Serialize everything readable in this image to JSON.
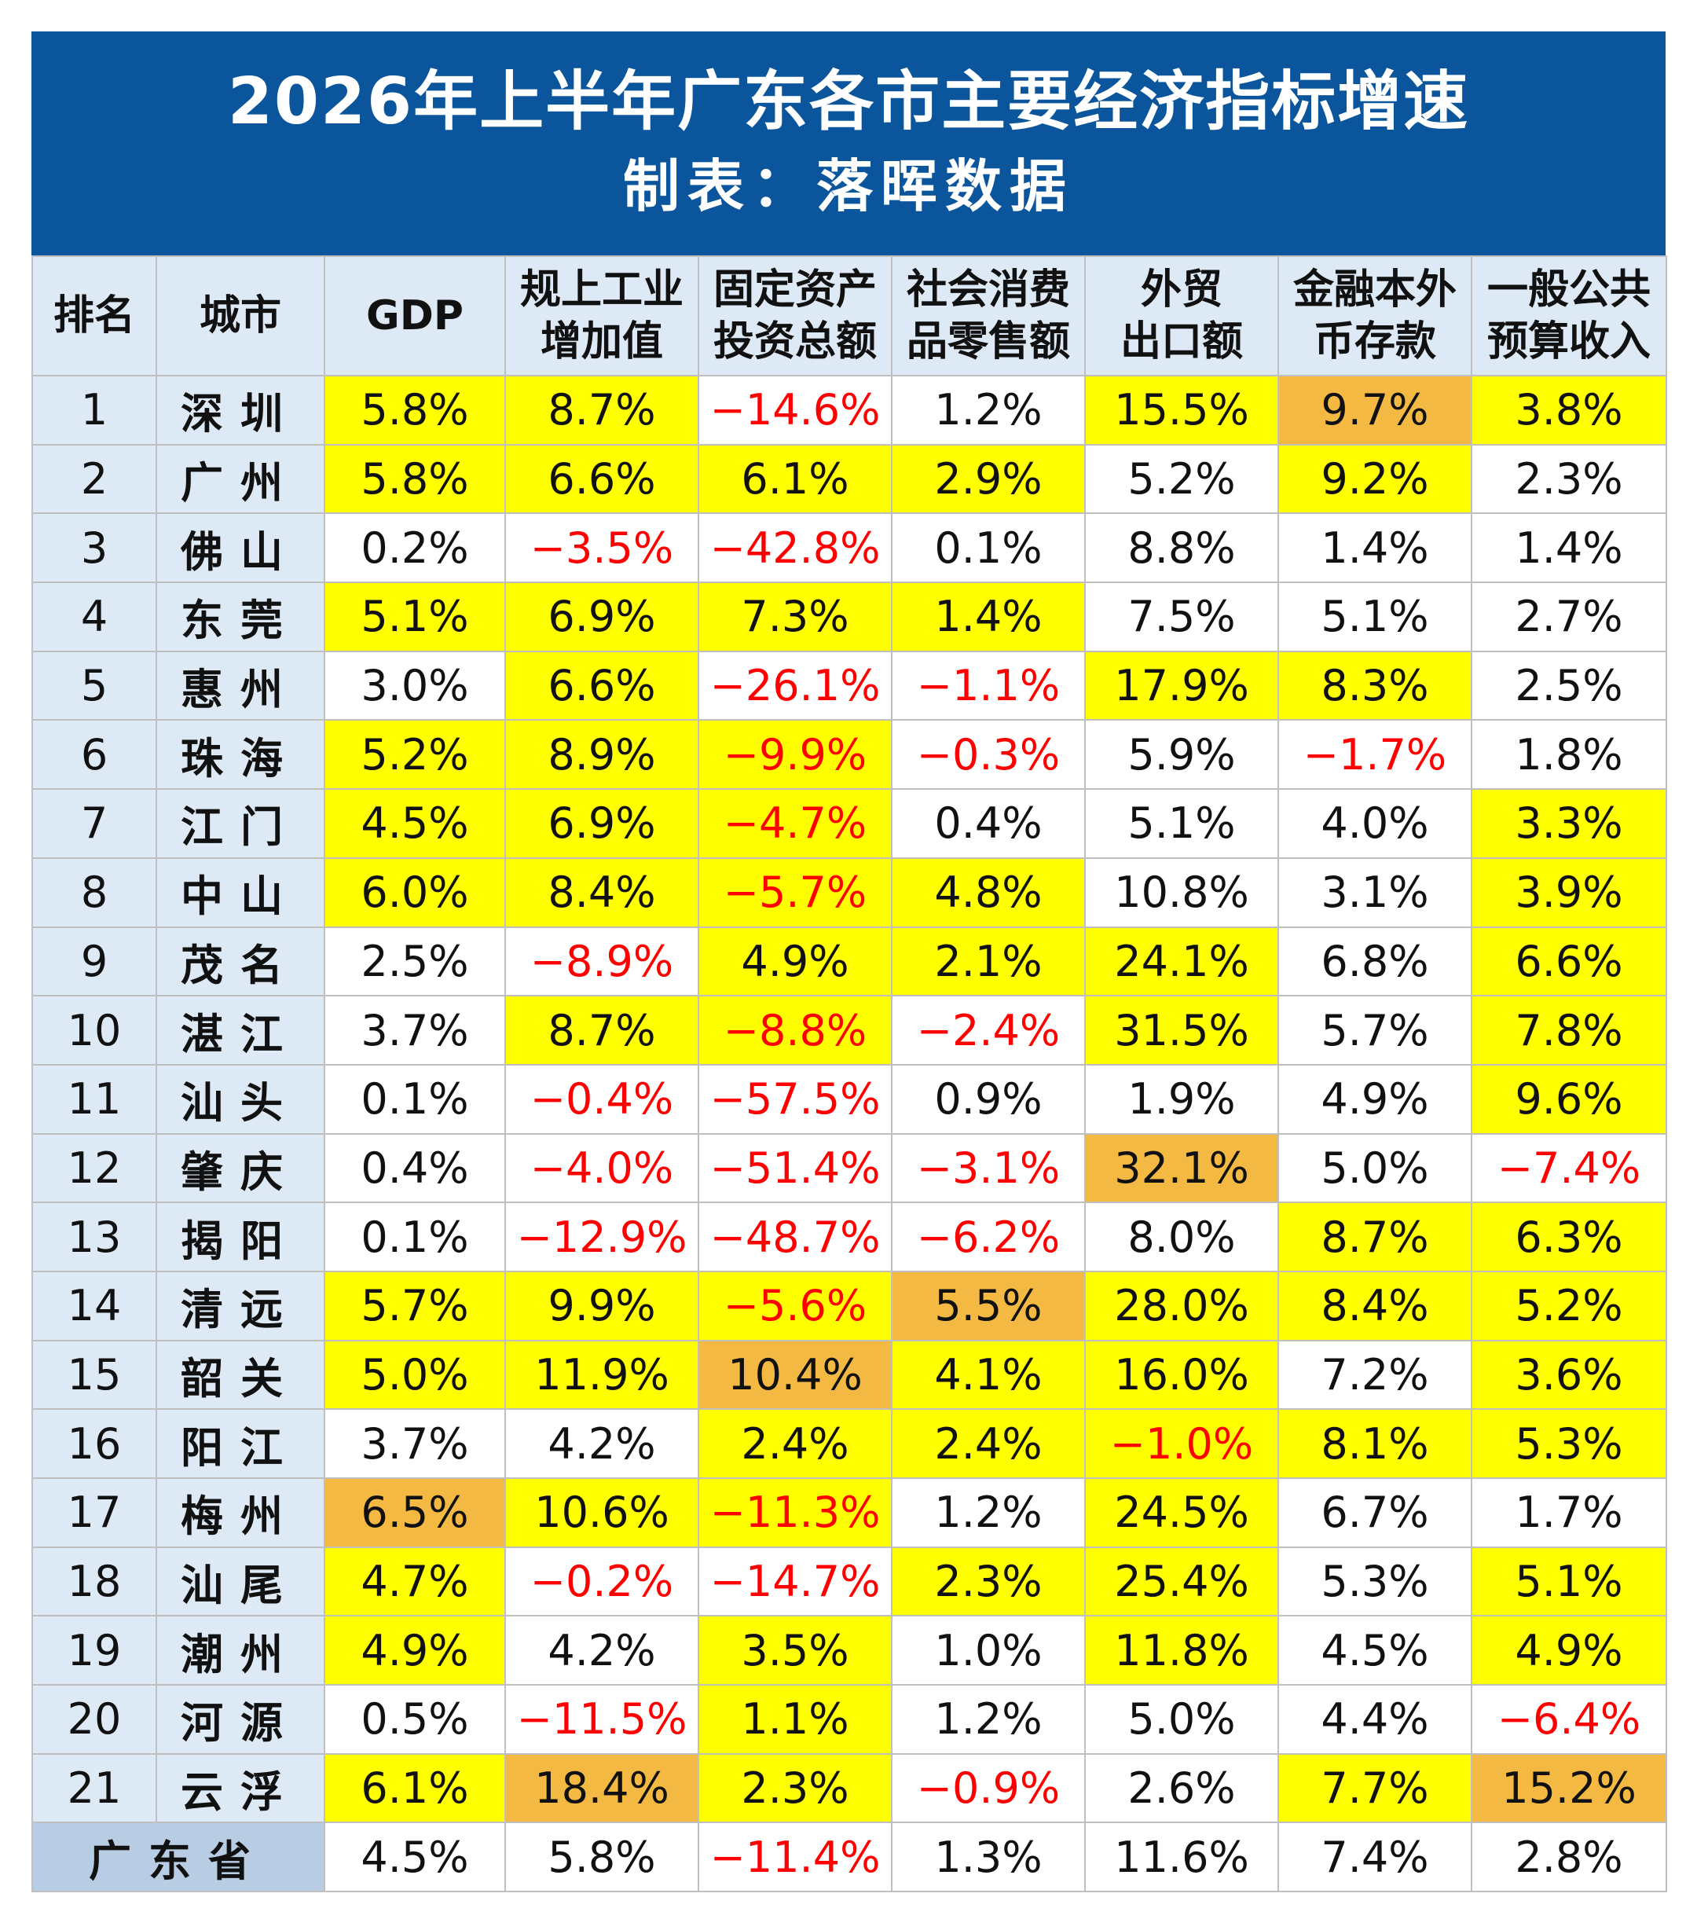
{
  "title": "2026年上半年广东各市主要经济指标增速",
  "subtitle": "制表：落晖数据",
  "colors": {
    "header_bg": "#0b559c",
    "highlight_yellow": "#ffff00",
    "highlight_orange": "#f4b942",
    "negative_text": "#ff0000",
    "label_bg": "#dde9f5",
    "province_bg": "#b8cce4"
  },
  "columns": [
    {
      "line1": "排名",
      "line2": ""
    },
    {
      "line1": "城市",
      "line2": ""
    },
    {
      "line1": "GDP",
      "line2": ""
    },
    {
      "line1": "规上工业",
      "line2": "增加值"
    },
    {
      "line1": "固定资产",
      "line2": "投资总额"
    },
    {
      "line1": "社会消费",
      "line2": "品零售额"
    },
    {
      "line1": "外贸",
      "line2": "出口额"
    },
    {
      "line1": "金融本外",
      "line2": "币存款"
    },
    {
      "line1": "一般公共",
      "line2": "预算收入"
    }
  ],
  "rows": [
    {
      "rank": "1",
      "city": "深圳",
      "values": [
        "5.8%",
        "8.7%",
        "−14.6%",
        "1.2%",
        "15.5%",
        "9.7%",
        "3.8%"
      ],
      "hl": [
        "y",
        "y",
        "",
        "",
        "y",
        "o",
        "y"
      ]
    },
    {
      "rank": "2",
      "city": "广州",
      "values": [
        "5.8%",
        "6.6%",
        "6.1%",
        "2.9%",
        "5.2%",
        "9.2%",
        "2.3%"
      ],
      "hl": [
        "y",
        "y",
        "y",
        "y",
        "",
        "y",
        ""
      ]
    },
    {
      "rank": "3",
      "city": "佛山",
      "values": [
        "0.2%",
        "−3.5%",
        "−42.8%",
        "0.1%",
        "8.8%",
        "1.4%",
        "1.4%"
      ],
      "hl": [
        "",
        "",
        "",
        "",
        "",
        "",
        ""
      ]
    },
    {
      "rank": "4",
      "city": "东莞",
      "values": [
        "5.1%",
        "6.9%",
        "7.3%",
        "1.4%",
        "7.5%",
        "5.1%",
        "2.7%"
      ],
      "hl": [
        "y",
        "y",
        "y",
        "y",
        "",
        "",
        ""
      ]
    },
    {
      "rank": "5",
      "city": "惠州",
      "values": [
        "3.0%",
        "6.6%",
        "−26.1%",
        "−1.1%",
        "17.9%",
        "8.3%",
        "2.5%"
      ],
      "hl": [
        "",
        "y",
        "",
        "",
        "y",
        "y",
        ""
      ]
    },
    {
      "rank": "6",
      "city": "珠海",
      "values": [
        "5.2%",
        "8.9%",
        "−9.9%",
        "−0.3%",
        "5.9%",
        "−1.7%",
        "1.8%"
      ],
      "hl": [
        "y",
        "y",
        "y",
        "",
        "",
        "",
        ""
      ]
    },
    {
      "rank": "7",
      "city": "江门",
      "values": [
        "4.5%",
        "6.9%",
        "−4.7%",
        "0.4%",
        "5.1%",
        "4.0%",
        "3.3%"
      ],
      "hl": [
        "y",
        "y",
        "y",
        "",
        "",
        "",
        "y"
      ]
    },
    {
      "rank": "8",
      "city": "中山",
      "values": [
        "6.0%",
        "8.4%",
        "−5.7%",
        "4.8%",
        "10.8%",
        "3.1%",
        "3.9%"
      ],
      "hl": [
        "y",
        "y",
        "y",
        "y",
        "",
        "",
        "y"
      ]
    },
    {
      "rank": "9",
      "city": "茂名",
      "values": [
        "2.5%",
        "−8.9%",
        "4.9%",
        "2.1%",
        "24.1%",
        "6.8%",
        "6.6%"
      ],
      "hl": [
        "",
        "",
        "y",
        "y",
        "y",
        "",
        "y"
      ]
    },
    {
      "rank": "10",
      "city": "湛江",
      "values": [
        "3.7%",
        "8.7%",
        "−8.8%",
        "−2.4%",
        "31.5%",
        "5.7%",
        "7.8%"
      ],
      "hl": [
        "",
        "y",
        "y",
        "",
        "y",
        "",
        "y"
      ]
    },
    {
      "rank": "11",
      "city": "汕头",
      "values": [
        "0.1%",
        "−0.4%",
        "−57.5%",
        "0.9%",
        "1.9%",
        "4.9%",
        "9.6%"
      ],
      "hl": [
        "",
        "",
        "",
        "",
        "",
        "",
        "y"
      ]
    },
    {
      "rank": "12",
      "city": "肇庆",
      "values": [
        "0.4%",
        "−4.0%",
        "−51.4%",
        "−3.1%",
        "32.1%",
        "5.0%",
        "−7.4%"
      ],
      "hl": [
        "",
        "",
        "",
        "",
        "o",
        "",
        ""
      ]
    },
    {
      "rank": "13",
      "city": "揭阳",
      "values": [
        "0.1%",
        "−12.9%",
        "−48.7%",
        "−6.2%",
        "8.0%",
        "8.7%",
        "6.3%"
      ],
      "hl": [
        "",
        "",
        "",
        "",
        "",
        "y",
        "y"
      ]
    },
    {
      "rank": "14",
      "city": "清远",
      "values": [
        "5.7%",
        "9.9%",
        "−5.6%",
        "5.5%",
        "28.0%",
        "8.4%",
        "5.2%"
      ],
      "hl": [
        "y",
        "y",
        "y",
        "o",
        "y",
        "y",
        "y"
      ]
    },
    {
      "rank": "15",
      "city": "韶关",
      "values": [
        "5.0%",
        "11.9%",
        "10.4%",
        "4.1%",
        "16.0%",
        "7.2%",
        "3.6%"
      ],
      "hl": [
        "y",
        "y",
        "o",
        "y",
        "y",
        "",
        "y"
      ]
    },
    {
      "rank": "16",
      "city": "阳江",
      "values": [
        "3.7%",
        "4.2%",
        "2.4%",
        "2.4%",
        "−1.0%",
        "8.1%",
        "5.3%"
      ],
      "hl": [
        "",
        "",
        "y",
        "y",
        "y",
        "y",
        "y"
      ]
    },
    {
      "rank": "17",
      "city": "梅州",
      "values": [
        "6.5%",
        "10.6%",
        "−11.3%",
        "1.2%",
        "24.5%",
        "6.7%",
        "1.7%"
      ],
      "hl": [
        "o",
        "y",
        "y",
        "",
        "y",
        "",
        ""
      ]
    },
    {
      "rank": "18",
      "city": "汕尾",
      "values": [
        "4.7%",
        "−0.2%",
        "−14.7%",
        "2.3%",
        "25.4%",
        "5.3%",
        "5.1%"
      ],
      "hl": [
        "y",
        "",
        "",
        "y",
        "y",
        "",
        "y"
      ]
    },
    {
      "rank": "19",
      "city": "潮州",
      "values": [
        "4.9%",
        "4.2%",
        "3.5%",
        "1.0%",
        "11.8%",
        "4.5%",
        "4.9%"
      ],
      "hl": [
        "y",
        "",
        "y",
        "",
        "y",
        "",
        "y"
      ]
    },
    {
      "rank": "20",
      "city": "河源",
      "values": [
        "0.5%",
        "−11.5%",
        "1.1%",
        "1.2%",
        "5.0%",
        "4.4%",
        "−6.4%"
      ],
      "hl": [
        "",
        "",
        "y",
        "",
        "",
        "",
        ""
      ]
    },
    {
      "rank": "21",
      "city": "云浮",
      "values": [
        "6.1%",
        "18.4%",
        "2.3%",
        "−0.9%",
        "2.6%",
        "7.7%",
        "15.2%"
      ],
      "hl": [
        "y",
        "o",
        "y",
        "",
        "",
        "y",
        "o"
      ]
    }
  ],
  "province": {
    "label": "广东省",
    "values": [
      "4.5%",
      "5.8%",
      "−11.4%",
      "1.3%",
      "11.6%",
      "7.4%",
      "2.8%"
    ]
  }
}
